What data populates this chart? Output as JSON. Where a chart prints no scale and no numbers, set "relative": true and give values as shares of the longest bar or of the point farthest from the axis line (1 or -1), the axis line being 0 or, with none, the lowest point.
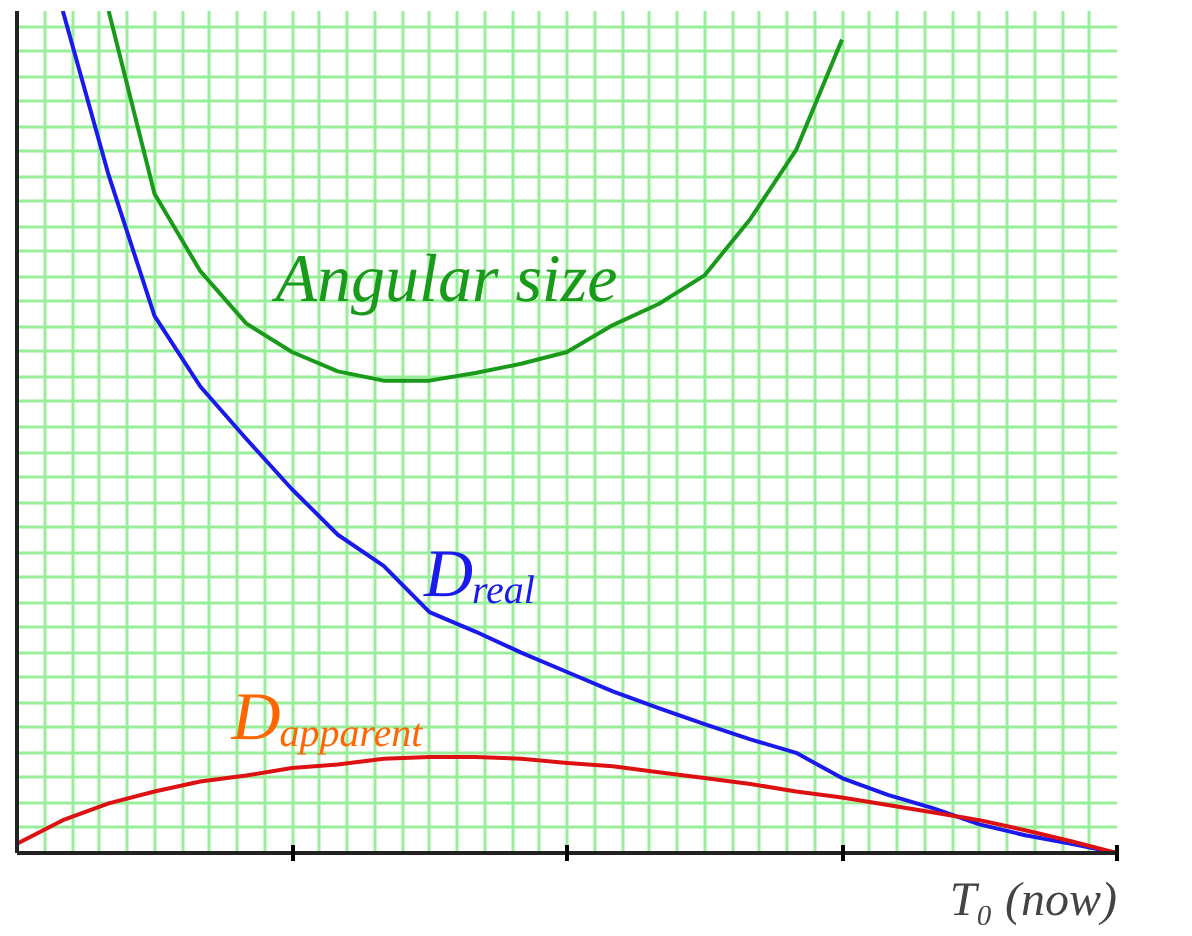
{
  "chart_data": {
    "type": "line",
    "relative": true,
    "xlabel": "T₀ (now)",
    "grid": true,
    "tick_labels": false,
    "marker": "none",
    "line_style": "solid",
    "categories": [
      null,
      null,
      null,
      null,
      null,
      null,
      null,
      null,
      null,
      null,
      null,
      null,
      null,
      null,
      null,
      null,
      null,
      null,
      null,
      null,
      null,
      null,
      null,
      null,
      null
    ],
    "series": [
      {
        "name": "Angular size",
        "color": "#1a9a1a",
        "values": [
          null,
          null,
          1.0,
          0.783,
          0.691,
          0.629,
          0.595,
          0.572,
          0.561,
          0.561,
          0.57,
          0.581,
          0.595,
          0.627,
          0.652,
          0.686,
          0.753,
          0.835,
          0.966,
          null,
          null,
          null,
          null,
          null,
          null
        ]
      },
      {
        "name": "D$_{real}$",
        "color": "#1a1aee",
        "values": [
          null,
          1.0,
          0.805,
          0.638,
          0.554,
          0.492,
          0.432,
          0.378,
          0.341,
          0.286,
          0.263,
          0.238,
          0.215,
          0.192,
          0.172,
          0.153,
          0.135,
          0.119,
          0.089,
          0.069,
          0.053,
          0.034,
          0.021,
          0.011,
          0
        ]
      },
      {
        "name": "D$_{apparent}$",
        "color": "#dd1111",
        "values": [
          0.011,
          0.039,
          0.059,
          0.073,
          0.085,
          0.092,
          0.101,
          0.105,
          0.112,
          0.114,
          0.114,
          0.112,
          0.107,
          0.103,
          0.096,
          0.089,
          0.082,
          0.073,
          0.066,
          0.057,
          0.048,
          0.039,
          0.027,
          0.014,
          0
        ]
      }
    ]
  }
}
